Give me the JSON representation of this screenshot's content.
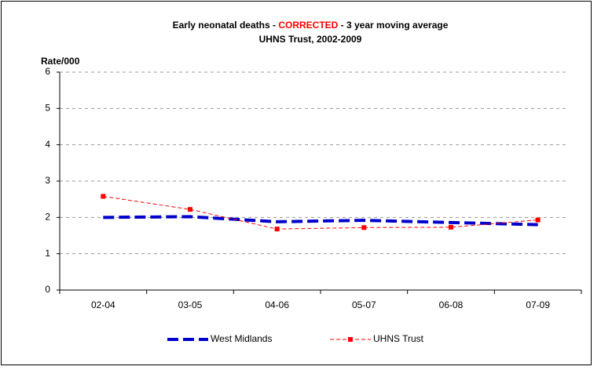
{
  "chart_data": {
    "type": "line",
    "title": [
      "Early neonatal deaths - ",
      "CORRECTED",
      " - 3 year moving average"
    ],
    "title_colors": [
      "#000000",
      "#ff0000",
      "#000000"
    ],
    "subtitle": "UHNS Trust, 2002-2009",
    "y_label": "Rate/000",
    "categories": [
      "02-04",
      "03-05",
      "04-06",
      "05-07",
      "06-08",
      "07-09"
    ],
    "series": [
      {
        "name": "West Midlands",
        "color": "#0000cc",
        "values": [
          2.0,
          2.02,
          1.88,
          1.92,
          1.86,
          1.8
        ]
      },
      {
        "name": "UHNS Trust",
        "color": "#ff0000",
        "values": [
          2.58,
          2.22,
          1.68,
          1.72,
          1.73,
          1.93
        ]
      }
    ],
    "ylim": [
      0,
      6
    ],
    "yticks": [
      0,
      1,
      2,
      3,
      4,
      5,
      6
    ],
    "grid": true
  }
}
